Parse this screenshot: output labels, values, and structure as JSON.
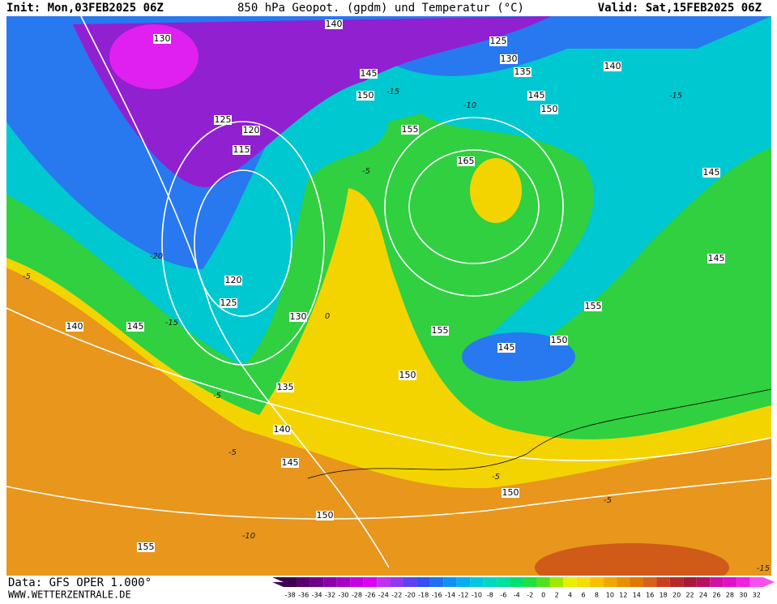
{
  "header": {
    "init": "Init: Mon,03FEB2025 06Z",
    "title": "850 hPa Geopot. (gpdm) und Temperatur (°C)",
    "valid": "Valid: Sat,15FEB2025 06Z"
  },
  "footer": {
    "data": "Data: GFS OPER 1.000°",
    "site": "WWW.WETTERZENTRALE.DE"
  },
  "scale": {
    "labels": [
      -38,
      -36,
      -34,
      -32,
      -30,
      -28,
      -26,
      -24,
      -22,
      -20,
      -18,
      -16,
      -14,
      -12,
      -10,
      -8,
      -6,
      -4,
      -2,
      0,
      2,
      4,
      6,
      8,
      10,
      12,
      14,
      16,
      18,
      20,
      22,
      24,
      26,
      28,
      30,
      32
    ],
    "colors": [
      "#3c0050",
      "#55006e",
      "#6e008c",
      "#8c00aa",
      "#a800c8",
      "#c400e0",
      "#dc00f4",
      "#c030f0",
      "#9038f0",
      "#6040f0",
      "#3050f0",
      "#2070f0",
      "#1090f0",
      "#00b0f0",
      "#00c8e0",
      "#00d8c0",
      "#00e0a0",
      "#00e070",
      "#20e040",
      "#50e020",
      "#a0e800",
      "#e8f000",
      "#f8dc00",
      "#f8c000",
      "#f0a800",
      "#e89000",
      "#e07800",
      "#d86018",
      "#c84020",
      "#b82828",
      "#a81838",
      "#b81060",
      "#d010a0",
      "#e010c8",
      "#f020e0",
      "#f850f0"
    ]
  },
  "contour_labels": [
    "130",
    "140",
    "125",
    "130",
    "135",
    "145",
    "150",
    "145",
    "150",
    "140",
    "125",
    "120",
    "115",
    "155",
    "165",
    "145",
    "120",
    "125",
    "130",
    "145",
    "140",
    "155",
    "155",
    "150",
    "145",
    "150",
    "135",
    "140",
    "145",
    "150",
    "150",
    "155",
    "145"
  ],
  "isotherm_labels": [
    "-15",
    "-10",
    "-5",
    "-15",
    "-20",
    "-5",
    "-5",
    "-5",
    "-5",
    "-10",
    "-15",
    "-5",
    "-15",
    "0"
  ]
}
